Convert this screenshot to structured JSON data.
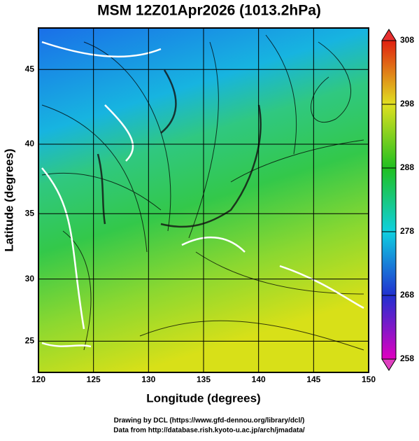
{
  "title": "MSM 12Z01Apr2026 (1013.2hPa)",
  "map": {
    "projection": "mercator",
    "xlabel": "Longitude (degrees)",
    "ylabel": "Latitude  (degrees)",
    "xlim": [
      120,
      150
    ],
    "ylim": [
      22.4,
      47.6
    ],
    "xticks": [
      120,
      125,
      130,
      135,
      140,
      145,
      150
    ],
    "yticks": [
      25,
      30,
      35,
      40,
      45
    ],
    "grid": true
  },
  "colorbar": {
    "lim": [
      258,
      308
    ],
    "ticks": [
      258,
      268,
      278,
      288,
      298,
      308
    ]
  },
  "credits": [
    "Drawing by DCL (https://www.gfd-dennou.org/library/dcl/)",
    "Data from http://database.rish.kyoto-u.ac.jp/arch/jmadata/"
  ]
}
